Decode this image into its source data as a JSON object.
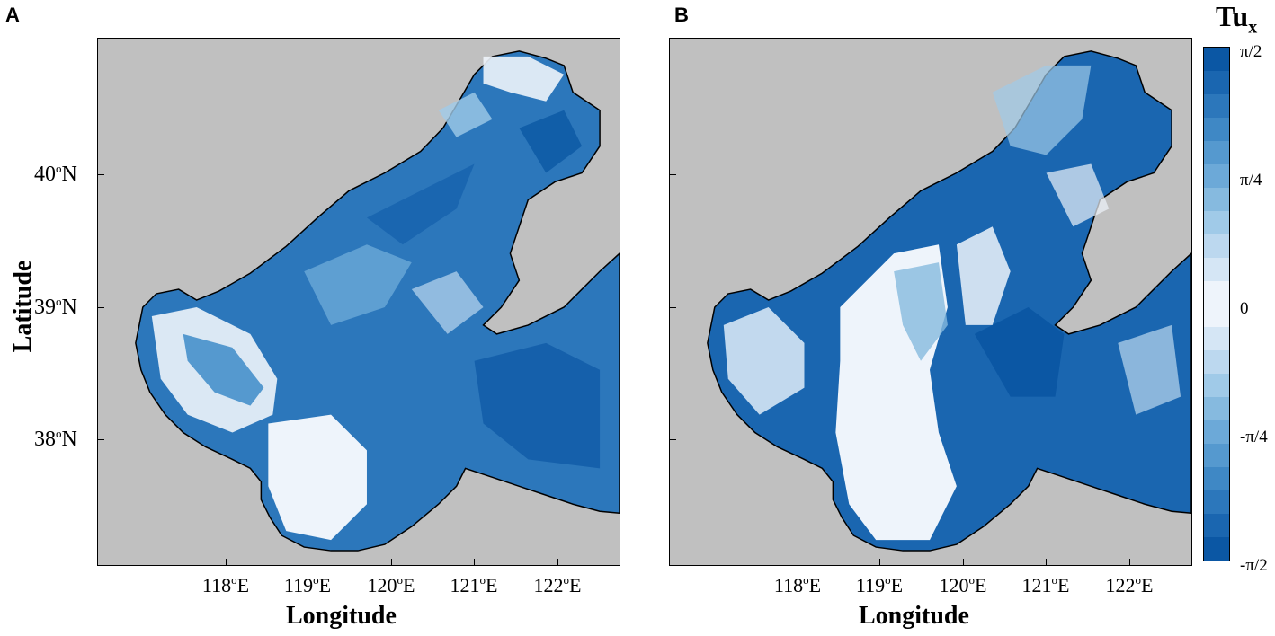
{
  "panels": [
    {
      "label": "A",
      "xlabel": "Longitude",
      "ylabel": "Latitude"
    },
    {
      "label": "B",
      "xlabel": "Longitude"
    }
  ],
  "x_ticks": [
    {
      "deg": "118",
      "sym": "o",
      "hem": "E"
    },
    {
      "deg": "119",
      "sym": "o",
      "hem": "E"
    },
    {
      "deg": "120",
      "sym": "o",
      "hem": "E"
    },
    {
      "deg": "121",
      "sym": "o",
      "hem": "E"
    },
    {
      "deg": "122",
      "sym": "o",
      "hem": "E"
    }
  ],
  "y_ticks": [
    {
      "deg": "40",
      "sym": "o",
      "hem": "N"
    },
    {
      "deg": "39",
      "sym": "o",
      "hem": "N"
    },
    {
      "deg": "38",
      "sym": "o",
      "hem": "N"
    }
  ],
  "colorbar": {
    "title_main": "Tu",
    "title_sub": "x",
    "ticks": [
      "π/2",
      "π/4",
      "0",
      "-π/4",
      "-π/2"
    ],
    "colors": [
      "#0b57a4",
      "#1a66b0",
      "#2c77bb",
      "#3f88c5",
      "#5599cf",
      "#6ca9d8",
      "#86badf",
      "#a0cae8",
      "#bcd8ef",
      "#d5e6f5",
      "#eef4fb",
      "#eef4fb",
      "#d5e6f5",
      "#bcd8ef",
      "#a0cae8",
      "#86badf",
      "#6ca9d8",
      "#5599cf",
      "#3f88c5",
      "#2c77bb",
      "#1a66b0",
      "#0b57a4"
    ]
  },
  "map_colors": {
    "land": "#c0c0c0",
    "coast": "#000000",
    "deep": "#1a66b0",
    "mid": "#5599cf",
    "light": "#bcd8ef",
    "pale": "#eef4fb"
  }
}
